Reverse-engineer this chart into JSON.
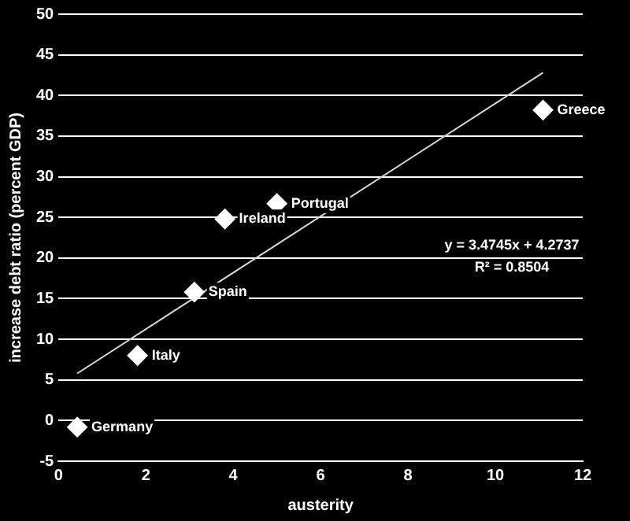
{
  "chart_data": {
    "type": "scatter",
    "xlabel": "austerity",
    "ylabel": "increase debt ratio (percent GDP)",
    "xlim": [
      0,
      12
    ],
    "xticks": [
      0,
      2,
      4,
      6,
      8,
      10,
      12
    ],
    "ylim": [
      -5,
      50
    ],
    "yticks": [
      -5,
      0,
      5,
      10,
      15,
      20,
      25,
      30,
      35,
      40,
      45,
      50
    ],
    "grid": "y",
    "legend": false,
    "marker": "diamond",
    "series": [
      {
        "type": "scatter",
        "color": "#ffffff",
        "x": [
          0.43,
          1.81,
          3.11,
          3.81,
          5.0,
          11.09
        ],
        "values": [
          -0.8,
          8.0,
          15.8,
          24.8,
          26.7,
          38.2
        ]
      },
      {
        "type": "line",
        "color": "#d9d9d9",
        "line_style": "solid",
        "marker": "none",
        "x": [
          0.43,
          11.09
        ],
        "values": [
          5.8,
          42.8
        ]
      }
    ],
    "annotations": [
      {
        "text": "Germany",
        "x": 0.43,
        "y": -0.8
      },
      {
        "text": "Italy",
        "x": 1.81,
        "y": 8.0
      },
      {
        "text": "Spain",
        "x": 3.11,
        "y": 15.8
      },
      {
        "text": "Ireland",
        "x": 3.81,
        "y": 24.8
      },
      {
        "text": "Portugal",
        "x": 5.0,
        "y": 26.7
      },
      {
        "text": "Greece",
        "x": 11.09,
        "y": 38.2
      },
      "y = 3.4745x + 4.2737",
      "R² = 0.8504"
    ]
  }
}
